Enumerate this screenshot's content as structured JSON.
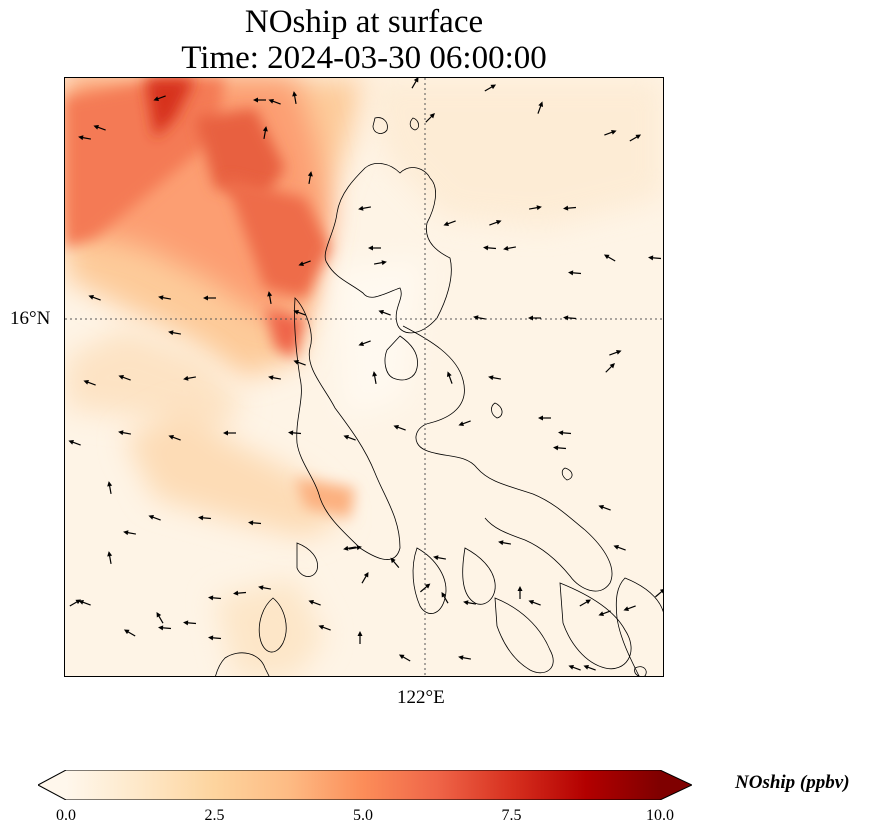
{
  "title": {
    "line1": "NOship at surface",
    "line2": "Time: 2024-03-30 06:00:00"
  },
  "map": {
    "lat_tick_label": "16°N",
    "lon_tick_label": "122°E",
    "gridline_style": "dotted",
    "has_coastlines": true,
    "has_wind_vectors": true
  },
  "colorbar": {
    "label": "NOship (ppbv)",
    "colormap": "OrRd",
    "min": 0.0,
    "max": 10.0,
    "extend": "both",
    "ticks": [
      "0.0",
      "2.5",
      "5.0",
      "7.5",
      "10.0"
    ],
    "colors": [
      "#fff7ec",
      "#fee8c8",
      "#fdd49e",
      "#fdbb84",
      "#fc8d59",
      "#ef6548",
      "#d7301f",
      "#b30000",
      "#7f0000"
    ]
  }
}
